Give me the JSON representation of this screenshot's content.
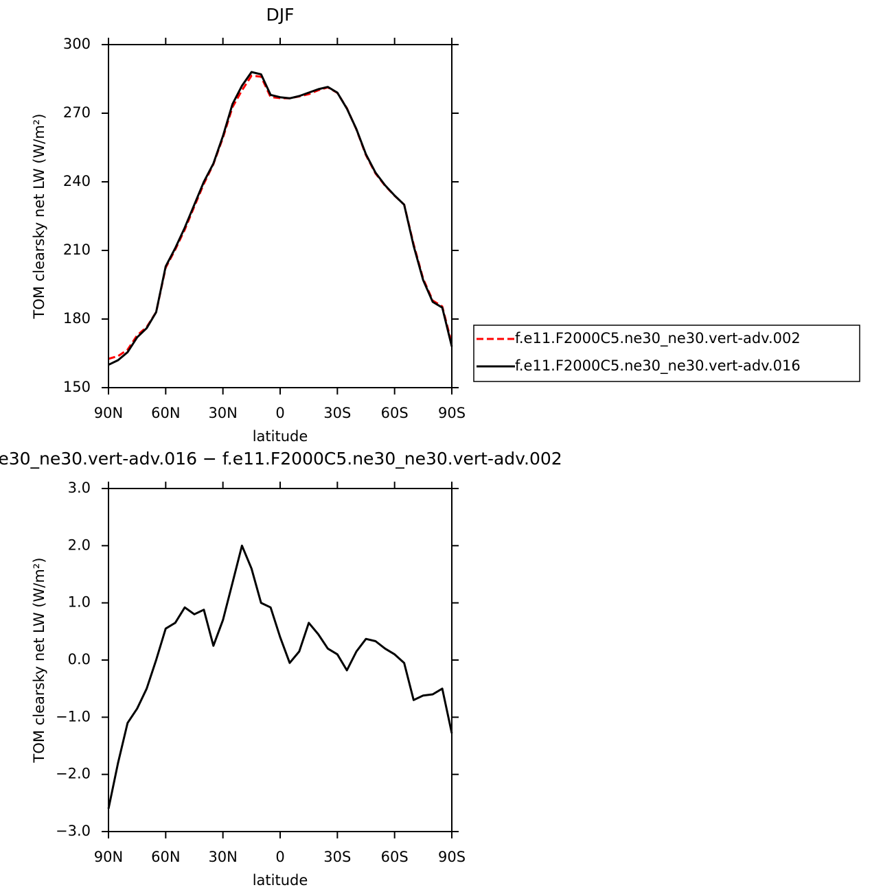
{
  "chart_data": [
    {
      "type": "line",
      "title": "DJF",
      "ylabel": "TOM clearsky net LW (W/m²)",
      "xlabel": "latitude",
      "x": [
        90,
        85,
        80,
        75,
        70,
        65,
        60,
        55,
        50,
        45,
        40,
        35,
        30,
        25,
        20,
        15,
        10,
        5,
        0,
        -5,
        -10,
        -15,
        -20,
        -25,
        -30,
        -35,
        -40,
        -45,
        -50,
        -55,
        -60,
        -65,
        -70,
        -75,
        -80,
        -85,
        -90
      ],
      "xlim": [
        90,
        -90
      ],
      "xticks": [
        {
          "value": 90,
          "label": "90N"
        },
        {
          "value": 60,
          "label": "60N"
        },
        {
          "value": 30,
          "label": "30N"
        },
        0,
        {
          "value": -30,
          "label": "30S"
        },
        {
          "value": -60,
          "label": "60S"
        },
        {
          "value": -90,
          "label": "90S"
        }
      ],
      "ylim": [
        150,
        300
      ],
      "yticks": [
        150,
        180,
        210,
        240,
        270,
        300
      ],
      "legend": "right",
      "series": [
        {
          "name": "f.e11.F2000C5.ne30_ne30.vert-adv.002",
          "color": "#ff0000",
          "dash": true,
          "values": [
            162.6,
            163.8,
            166.6,
            172.85,
            176.5,
            183,
            202.45,
            210.35,
            219.08,
            229.2,
            239.12,
            247.75,
            259.3,
            272.65,
            280,
            286.4,
            286,
            277.08,
            276.6,
            276.55,
            277.35,
            278.35,
            280.05,
            281.3,
            278.9,
            272.18,
            262.85,
            251.63,
            243.67,
            238.3,
            233.9,
            230.05,
            212.7,
            197.62,
            188.1,
            185.5,
            169.28
          ]
        },
        {
          "name": "f.e11.F2000C5.ne30_ne30.vert-adv.016",
          "color": "#000000",
          "dash": false,
          "values": [
            160,
            162,
            165.5,
            172,
            176,
            183,
            203,
            211,
            220,
            230,
            240,
            248,
            260,
            274,
            282,
            288,
            287,
            278,
            277,
            276.5,
            277.5,
            279,
            280.5,
            281.5,
            279,
            272,
            263,
            252,
            244,
            238.5,
            234,
            230,
            212,
            197,
            187.5,
            185,
            168
          ]
        }
      ]
    },
    {
      "type": "line",
      "title": "e30_ne30.vert-adv.016 − f.e11.F2000C5.ne30_ne30.vert-adv.002",
      "ylabel": "TOM clearsky net LW (W/m²)",
      "xlabel": "latitude",
      "x": [
        90,
        85,
        80,
        75,
        70,
        65,
        60,
        55,
        50,
        45,
        40,
        35,
        30,
        25,
        20,
        15,
        10,
        5,
        0,
        -5,
        -10,
        -15,
        -20,
        -25,
        -30,
        -35,
        -40,
        -45,
        -50,
        -55,
        -60,
        -65,
        -70,
        -75,
        -80,
        -85,
        -90
      ],
      "xlim": [
        90,
        -90
      ],
      "xticks": [
        {
          "value": 90,
          "label": "90N"
        },
        {
          "value": 60,
          "label": "60N"
        },
        {
          "value": 30,
          "label": "30N"
        },
        0,
        {
          "value": -30,
          "label": "30S"
        },
        {
          "value": -60,
          "label": "60S"
        },
        {
          "value": -90,
          "label": "90S"
        }
      ],
      "ylim": [
        -3,
        3
      ],
      "yticks": [
        {
          "value": -3,
          "label": "−3.0"
        },
        {
          "value": -2,
          "label": "−2.0"
        },
        {
          "value": -1,
          "label": "−1.0"
        },
        {
          "value": 0,
          "label": "0.0"
        },
        {
          "value": 1,
          "label": "1.0"
        },
        {
          "value": 2,
          "label": "2.0"
        },
        {
          "value": 3,
          "label": "3.0"
        }
      ],
      "color": "#000000",
      "values": [
        -2.6,
        -1.8,
        -1.1,
        -0.85,
        -0.5,
        0,
        0.55,
        0.65,
        0.92,
        0.8,
        0.88,
        0.25,
        0.7,
        1.35,
        2,
        1.6,
        1,
        0.92,
        0.4,
        -0.05,
        0.15,
        0.65,
        0.45,
        0.2,
        0.1,
        -0.18,
        0.15,
        0.37,
        0.33,
        0.2,
        0.1,
        -0.05,
        -0.7,
        -0.62,
        -0.6,
        -0.5,
        -1.28
      ]
    }
  ]
}
